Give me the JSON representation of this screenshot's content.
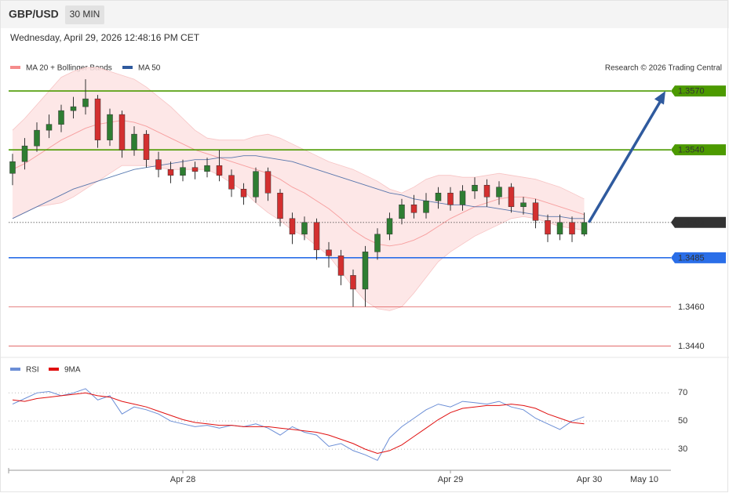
{
  "chart_data": {
    "type": "candlestick",
    "symbol": "GBP/USD",
    "timeframe": "30 MIN",
    "timestamp": "Wednesday, April 29, 2026 12:48:16 PM CET",
    "credit": "Research © 2026 Trading Central",
    "up_color": "#2e7d32",
    "down_color": "#d32f2f",
    "categories": [
      null,
      null,
      null,
      null,
      null,
      null,
      null,
      null,
      null,
      null,
      null,
      null,
      null,
      null,
      "Apr 28",
      null,
      null,
      null,
      null,
      null,
      null,
      null,
      null,
      null,
      null,
      null,
      null,
      null,
      null,
      null,
      null,
      null,
      null,
      null,
      null,
      null,
      "Apr 29",
      null,
      null,
      null,
      null,
      null,
      null,
      null,
      null,
      null,
      null,
      null
    ],
    "future_categories": [
      "Apr 30",
      "May 10"
    ],
    "open": [
      1.3528,
      1.3534,
      1.3542,
      1.355,
      1.3553,
      1.356,
      1.3562,
      1.3566,
      1.3545,
      1.3558,
      1.354,
      1.3548,
      1.3535,
      1.353,
      1.3527,
      1.3531,
      1.3529,
      1.3532,
      1.3527,
      1.352,
      1.3516,
      1.3529,
      1.3518,
      1.3505,
      1.3497,
      1.3503,
      1.3489,
      1.3486,
      1.3476,
      1.3469,
      1.3488,
      1.3497,
      1.3505,
      1.3512,
      1.3508,
      1.3514,
      1.3518,
      1.3512,
      1.3519,
      1.3522,
      1.3516,
      1.3521,
      1.3511,
      1.3513,
      1.3504,
      1.3497,
      1.3503,
      1.3497
    ],
    "high": [
      1.3538,
      1.3546,
      1.3554,
      1.3558,
      1.3563,
      1.3567,
      1.3576,
      1.3568,
      1.3561,
      1.356,
      1.3552,
      1.355,
      1.3539,
      1.3534,
      1.3535,
      1.3534,
      1.3536,
      1.354,
      1.353,
      1.3523,
      1.3531,
      1.3531,
      1.352,
      1.3508,
      1.3506,
      1.3505,
      1.3493,
      1.3489,
      1.3479,
      1.3491,
      1.35,
      1.3508,
      1.3515,
      1.3517,
      1.3518,
      1.3521,
      1.3521,
      1.3522,
      1.3526,
      1.3525,
      1.3524,
      1.3523,
      1.3516,
      1.3515,
      1.3507,
      1.3507,
      1.3506,
      1.3508
    ],
    "low": [
      1.3522,
      1.353,
      1.3539,
      1.3546,
      1.3549,
      1.3556,
      1.3558,
      1.3541,
      1.3542,
      1.3536,
      1.3537,
      1.3531,
      1.3526,
      1.3523,
      1.3524,
      1.3525,
      1.3526,
      1.3524,
      1.3516,
      1.3512,
      1.3513,
      1.3514,
      1.3501,
      1.3492,
      1.3494,
      1.3484,
      1.348,
      1.3471,
      1.346,
      1.346,
      1.3484,
      1.3494,
      1.3502,
      1.3505,
      1.3505,
      1.351,
      1.3509,
      1.3509,
      1.3515,
      1.3511,
      1.3512,
      1.3508,
      1.3507,
      1.35,
      1.3493,
      1.3494,
      1.3493,
      1.3496
    ],
    "close": [
      1.3534,
      1.3542,
      1.355,
      1.3553,
      1.356,
      1.3562,
      1.3566,
      1.3545,
      1.3558,
      1.354,
      1.3548,
      1.3535,
      1.353,
      1.3527,
      1.3531,
      1.3529,
      1.3532,
      1.3527,
      1.352,
      1.3516,
      1.3529,
      1.3518,
      1.3505,
      1.3497,
      1.3503,
      1.3489,
      1.3486,
      1.3476,
      1.3469,
      1.3488,
      1.3497,
      1.3505,
      1.3512,
      1.3508,
      1.3514,
      1.3518,
      1.3512,
      1.3519,
      1.3522,
      1.3516,
      1.3521,
      1.3511,
      1.3513,
      1.3504,
      1.3497,
      1.3503,
      1.3497,
      1.3503
    ],
    "indicators": [
      {
        "name": "MA 20 + Bollinger Bands",
        "color": "#f58c8c",
        "values": [
          1.353,
          1.3533,
          1.3537,
          1.3541,
          1.3545,
          1.3548,
          1.3551,
          1.3553,
          1.3554,
          1.3555,
          1.3554,
          1.3552,
          1.3549,
          1.3546,
          1.3543,
          1.354,
          1.3538,
          1.3536,
          1.3534,
          1.3532,
          1.353,
          1.3528,
          1.3525,
          1.3521,
          1.3518,
          1.3514,
          1.351,
          1.3505,
          1.3499,
          1.3495,
          1.3492,
          1.3491,
          1.3492,
          1.3494,
          1.3497,
          1.3501,
          1.3505,
          1.3508,
          1.3511,
          1.3513,
          1.3515,
          1.3516,
          1.3516,
          1.3515,
          1.3513,
          1.3511,
          1.3509,
          1.3507
        ],
        "upper": [
          1.355,
          1.3556,
          1.3563,
          1.357,
          1.3577,
          1.358,
          1.3582,
          1.3582,
          1.358,
          1.3578,
          1.3576,
          1.3572,
          1.3567,
          1.3562,
          1.3556,
          1.355,
          1.3546,
          1.3545,
          1.3545,
          1.3545,
          1.3547,
          1.3548,
          1.3546,
          1.3543,
          1.354,
          1.3537,
          1.3534,
          1.3532,
          1.353,
          1.3527,
          1.3524,
          1.352,
          1.3518,
          1.3521,
          1.3525,
          1.3527,
          1.3527,
          1.3526,
          1.3526,
          1.3527,
          1.3528,
          1.3527,
          1.3526,
          1.3525,
          1.3523,
          1.3521,
          1.3518,
          1.3515
        ],
        "lower": [
          1.3505,
          1.3508,
          1.3511,
          1.3512,
          1.3513,
          1.3516,
          1.352,
          1.3524,
          1.3528,
          1.3532,
          1.3532,
          1.3532,
          1.3531,
          1.353,
          1.353,
          1.353,
          1.353,
          1.3527,
          1.3523,
          1.3519,
          1.3513,
          1.3508,
          1.3504,
          1.3499,
          1.3496,
          1.3491,
          1.3486,
          1.3478,
          1.347,
          1.3463,
          1.3459,
          1.3458,
          1.346,
          1.3467,
          1.3475,
          1.3483,
          1.3488,
          1.3492,
          1.3496,
          1.3499,
          1.3502,
          1.3505,
          1.3506,
          1.3505,
          1.3503,
          1.3501,
          1.35,
          1.3499
        ]
      },
      {
        "name": "MA 50",
        "color": "#2f5a9e",
        "values": [
          1.3505,
          1.3508,
          1.3511,
          1.3514,
          1.3517,
          1.352,
          1.3522,
          1.3524,
          1.3526,
          1.3528,
          1.353,
          1.3531,
          1.3532,
          1.3533,
          1.3534,
          1.3535,
          1.3535,
          1.3536,
          1.3536,
          1.3537,
          1.3537,
          1.3536,
          1.3535,
          1.3534,
          1.3532,
          1.353,
          1.3528,
          1.3526,
          1.3524,
          1.3522,
          1.352,
          1.3518,
          1.3517,
          1.3515,
          1.3514,
          1.3513,
          1.3512,
          1.3512,
          1.3511,
          1.3511,
          1.351,
          1.3509,
          1.3508,
          1.3507,
          1.3506,
          1.3506,
          1.3505,
          1.3505
        ]
      }
    ],
    "ylim": [
      1.3435,
      1.36
    ],
    "levels": [
      {
        "value": 1.357,
        "label": "1.3570",
        "color": "#4c9a00",
        "tag": true
      },
      {
        "value": 1.354,
        "label": "1.3540",
        "color": "#4c9a00",
        "tag": true
      },
      {
        "value": 1.3503,
        "color": "#333333",
        "tag": true,
        "dotted": true
      },
      {
        "value": 1.3485,
        "color": "#2a6ee8",
        "tag": true
      },
      {
        "value": 1.346,
        "label": "1.3460",
        "color": "#d83a3a",
        "tag": false
      },
      {
        "value": 1.344,
        "label": "1.3440",
        "color": "#d83a3a",
        "tag": false
      }
    ],
    "rsi": {
      "series": [
        {
          "name": "RSI",
          "color": "#6b8ed6",
          "values": [
            62,
            66,
            70,
            71,
            68,
            70,
            73,
            65,
            68,
            55,
            60,
            58,
            55,
            50,
            48,
            46,
            47,
            45,
            47,
            46,
            48,
            45,
            40,
            46,
            42,
            40,
            32,
            34,
            29,
            26,
            22,
            38,
            46,
            52,
            58,
            62,
            60,
            64,
            63,
            62,
            64,
            60,
            58,
            52,
            48,
            44,
            50,
            53
          ]
        },
        {
          "name": "9MA",
          "color": "#e01010",
          "values": [
            65,
            64,
            66,
            67,
            68,
            69,
            70,
            68,
            67,
            64,
            62,
            60,
            57,
            54,
            51,
            49,
            48,
            47,
            47,
            46,
            46,
            46,
            45,
            44,
            43,
            42,
            40,
            37,
            34,
            30,
            27,
            29,
            33,
            39,
            45,
            51,
            56,
            59,
            60,
            61,
            61,
            62,
            61,
            59,
            55,
            52,
            49,
            48
          ]
        }
      ],
      "ylim": [
        15,
        93
      ],
      "yticks": [
        30,
        50,
        70
      ]
    }
  }
}
